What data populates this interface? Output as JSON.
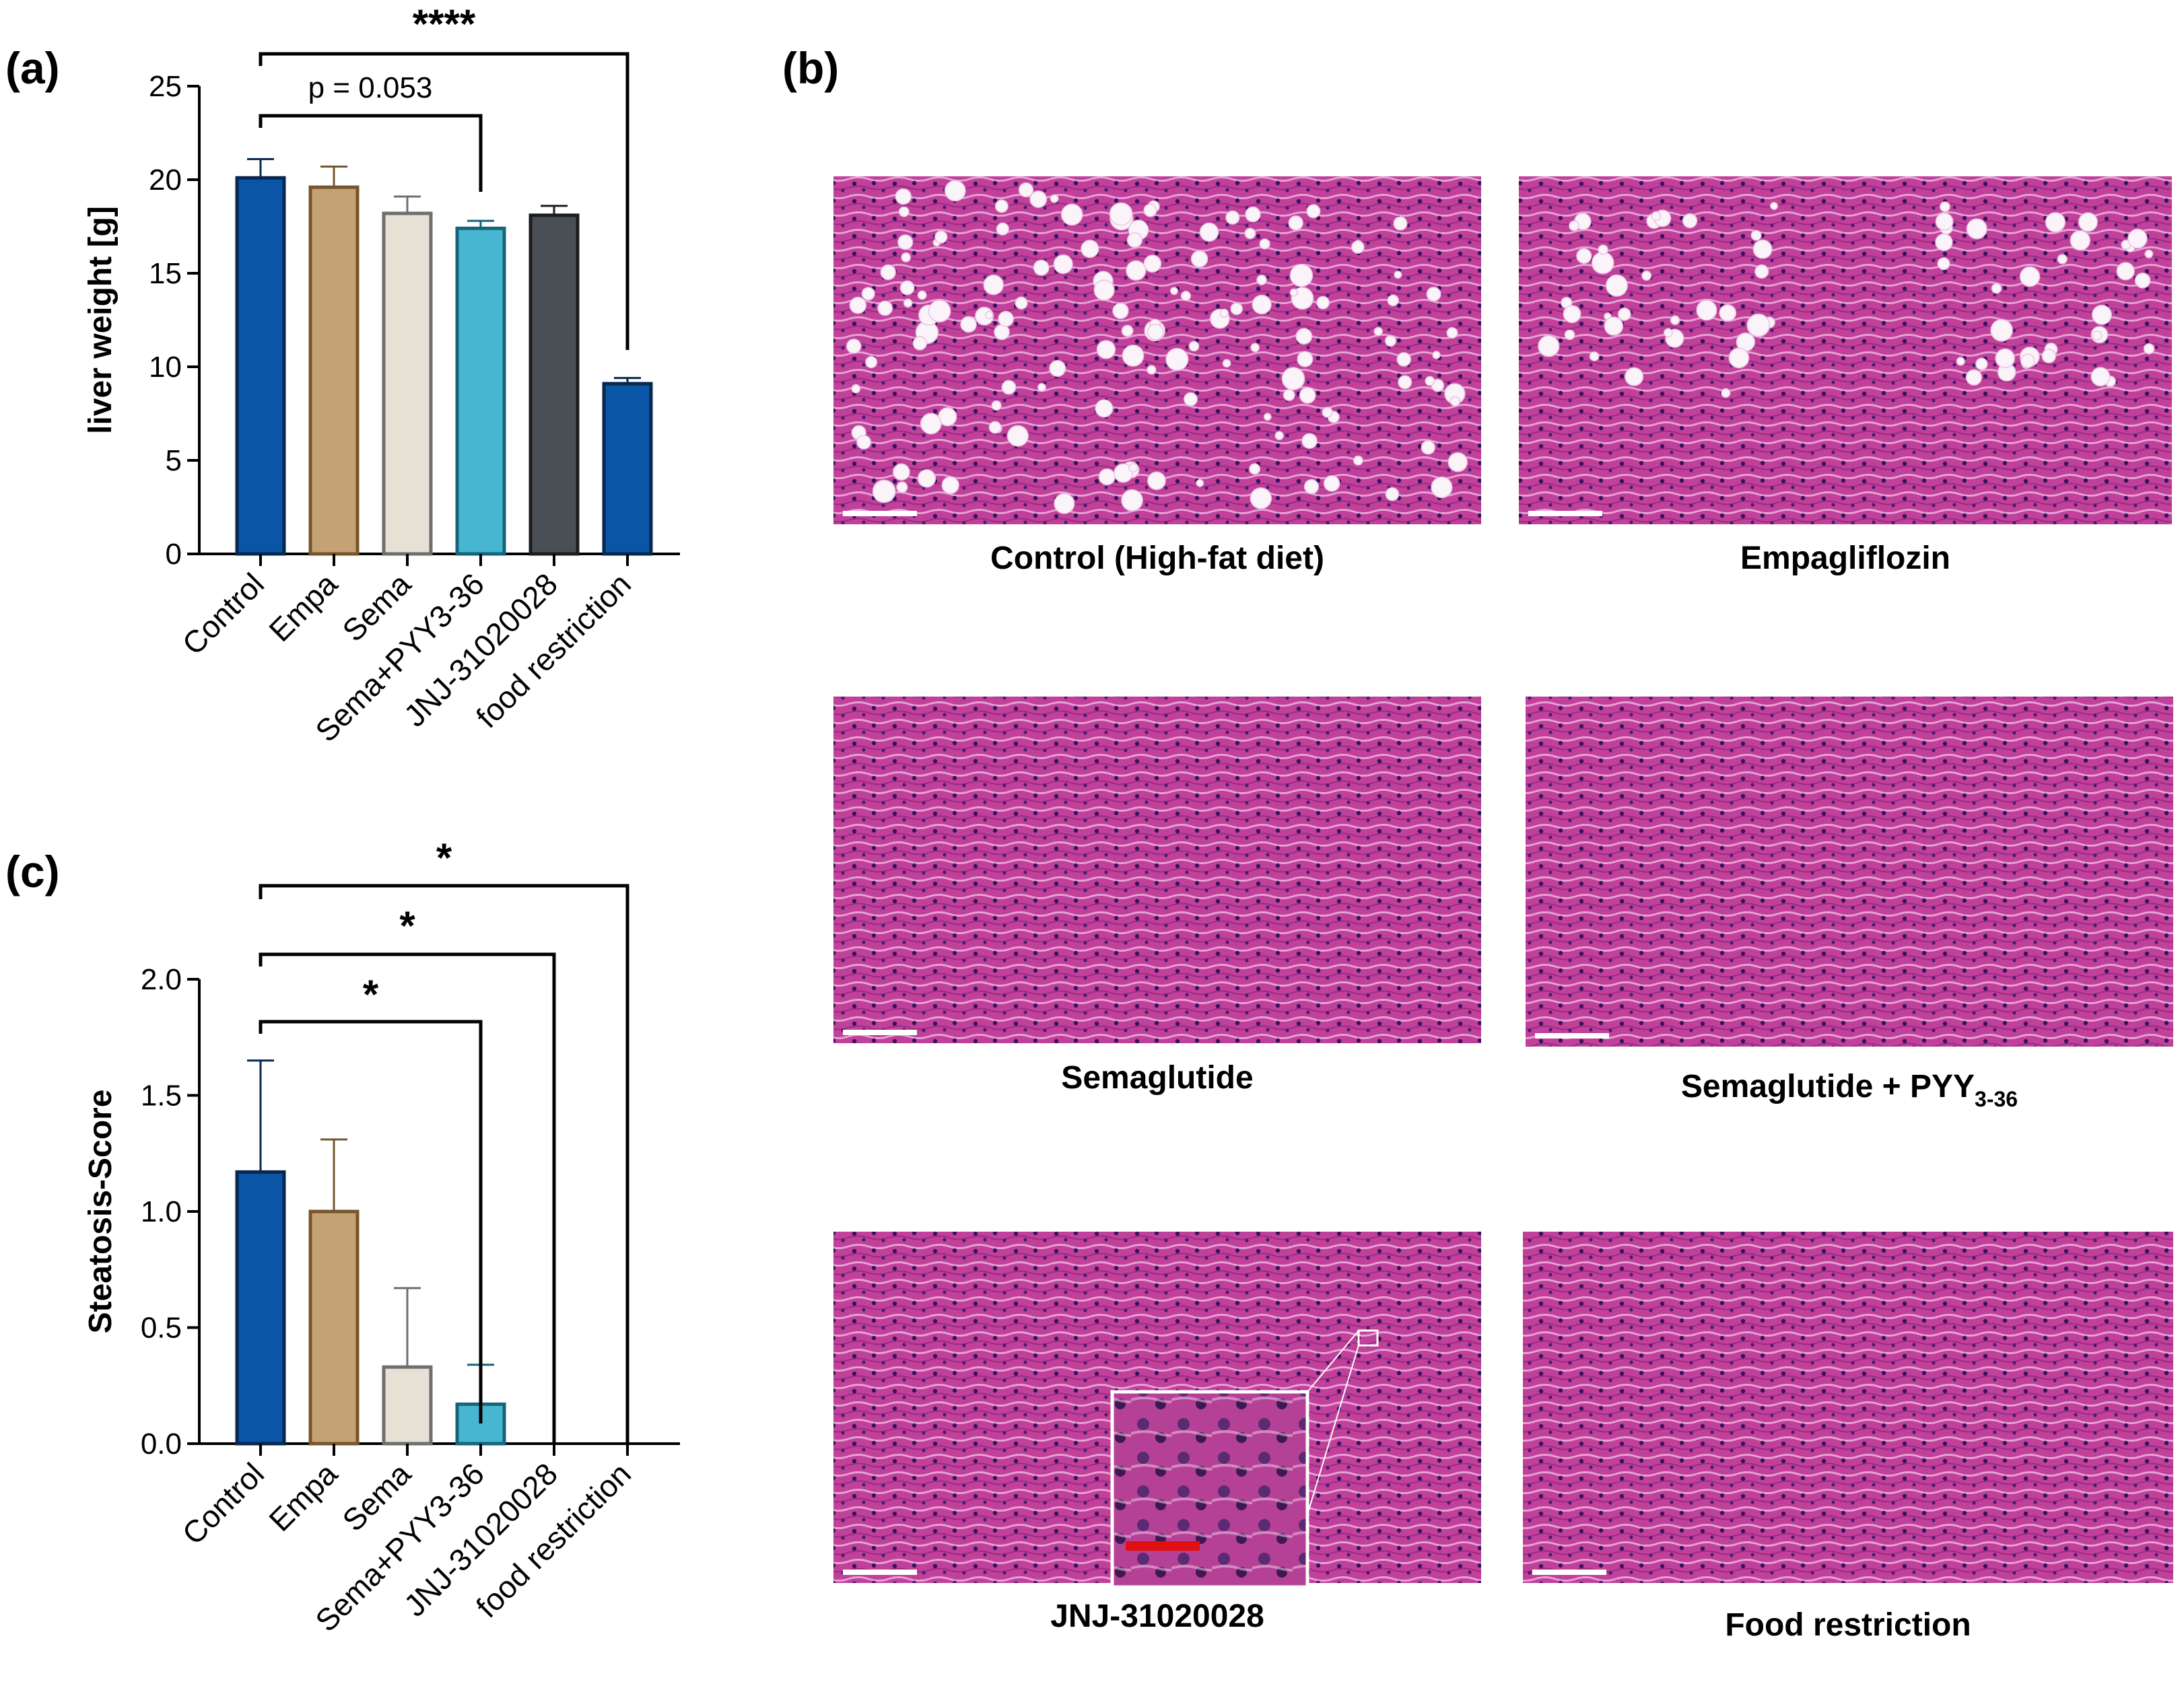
{
  "panels": {
    "a": "(a)",
    "b": "(b)",
    "c": "(c)"
  },
  "colors": {
    "bars": [
      "#0a55a5",
      "#c4a275",
      "#e6e0d5",
      "#49b6d1",
      "#4a4f56",
      "#0a55a5"
    ],
    "bar_edges": [
      "#07274e",
      "#76552d",
      "#6e6e6e",
      "#15647a",
      "#1c1c1c",
      "#07274e"
    ],
    "tissue_base": "#c0409a",
    "scale_bar": "#ffffff",
    "inset_scale_bar": "#e01010"
  },
  "chart_data": [
    {
      "type": "bar",
      "categories": [
        "Control",
        "Empa",
        "Sema",
        "Sema+PYY3-36",
        "JNJ-31020028",
        "food restriction"
      ],
      "values": [
        20.1,
        19.6,
        18.2,
        17.4,
        18.1,
        9.1
      ],
      "errors": [
        1.0,
        1.1,
        0.9,
        0.4,
        0.5,
        0.3
      ],
      "ylabel": "liver weight [g]",
      "ylim": [
        0,
        25
      ],
      "yticks": [
        0,
        5,
        10,
        15,
        20,
        25
      ],
      "yticklabels": [
        "0",
        "5",
        "10",
        "15",
        "20",
        "25"
      ],
      "significance": [
        {
          "from": "Control",
          "to": "food restriction",
          "label": "****"
        },
        {
          "from": "Control",
          "to": "Sema+PYY3-36",
          "label": "p = 0.053"
        }
      ]
    },
    {
      "type": "bar",
      "categories": [
        "Control",
        "Empa",
        "Sema",
        "Sema+PYY3-36",
        "JNJ-31020028",
        "food restriction"
      ],
      "values": [
        1.17,
        1.0,
        0.33,
        0.17,
        0,
        0
      ],
      "errors": [
        0.48,
        0.31,
        0.34,
        0.17,
        0,
        0
      ],
      "ylabel": "Steatosis-Score",
      "ylim": [
        0,
        2.0
      ],
      "yticks": [
        0,
        0.5,
        1.0,
        1.5,
        2.0
      ],
      "yticklabels": [
        "0.0",
        "0.5",
        "1.0",
        "1.5",
        "2.0"
      ],
      "significance": [
        {
          "from": "Control",
          "to": "food restriction",
          "label": "*"
        },
        {
          "from": "Control",
          "to": "JNJ-31020028",
          "label": "*"
        },
        {
          "from": "Control",
          "to": "Sema+PYY3-36",
          "label": "*"
        }
      ]
    }
  ],
  "histology": {
    "images": [
      {
        "caption": "Control (High-fat diet)",
        "caption_sub": "",
        "caption_tail": "",
        "fat_droplets": "many"
      },
      {
        "caption": "Empagliflozin",
        "caption_sub": "",
        "caption_tail": "",
        "fat_droplets": "moderate"
      },
      {
        "caption": "Semaglutide",
        "caption_sub": "",
        "caption_tail": "",
        "fat_droplets": "none"
      },
      {
        "caption": "Semaglutide + PYY",
        "caption_sub": "3-36",
        "caption_tail": "",
        "fat_droplets": "none"
      },
      {
        "caption": "JNJ-31020028",
        "caption_sub": "",
        "caption_tail": "",
        "fat_droplets": "none",
        "inset": true
      },
      {
        "caption": "Food restriction",
        "caption_sub": "",
        "caption_tail": "",
        "fat_droplets": "none"
      }
    ]
  }
}
